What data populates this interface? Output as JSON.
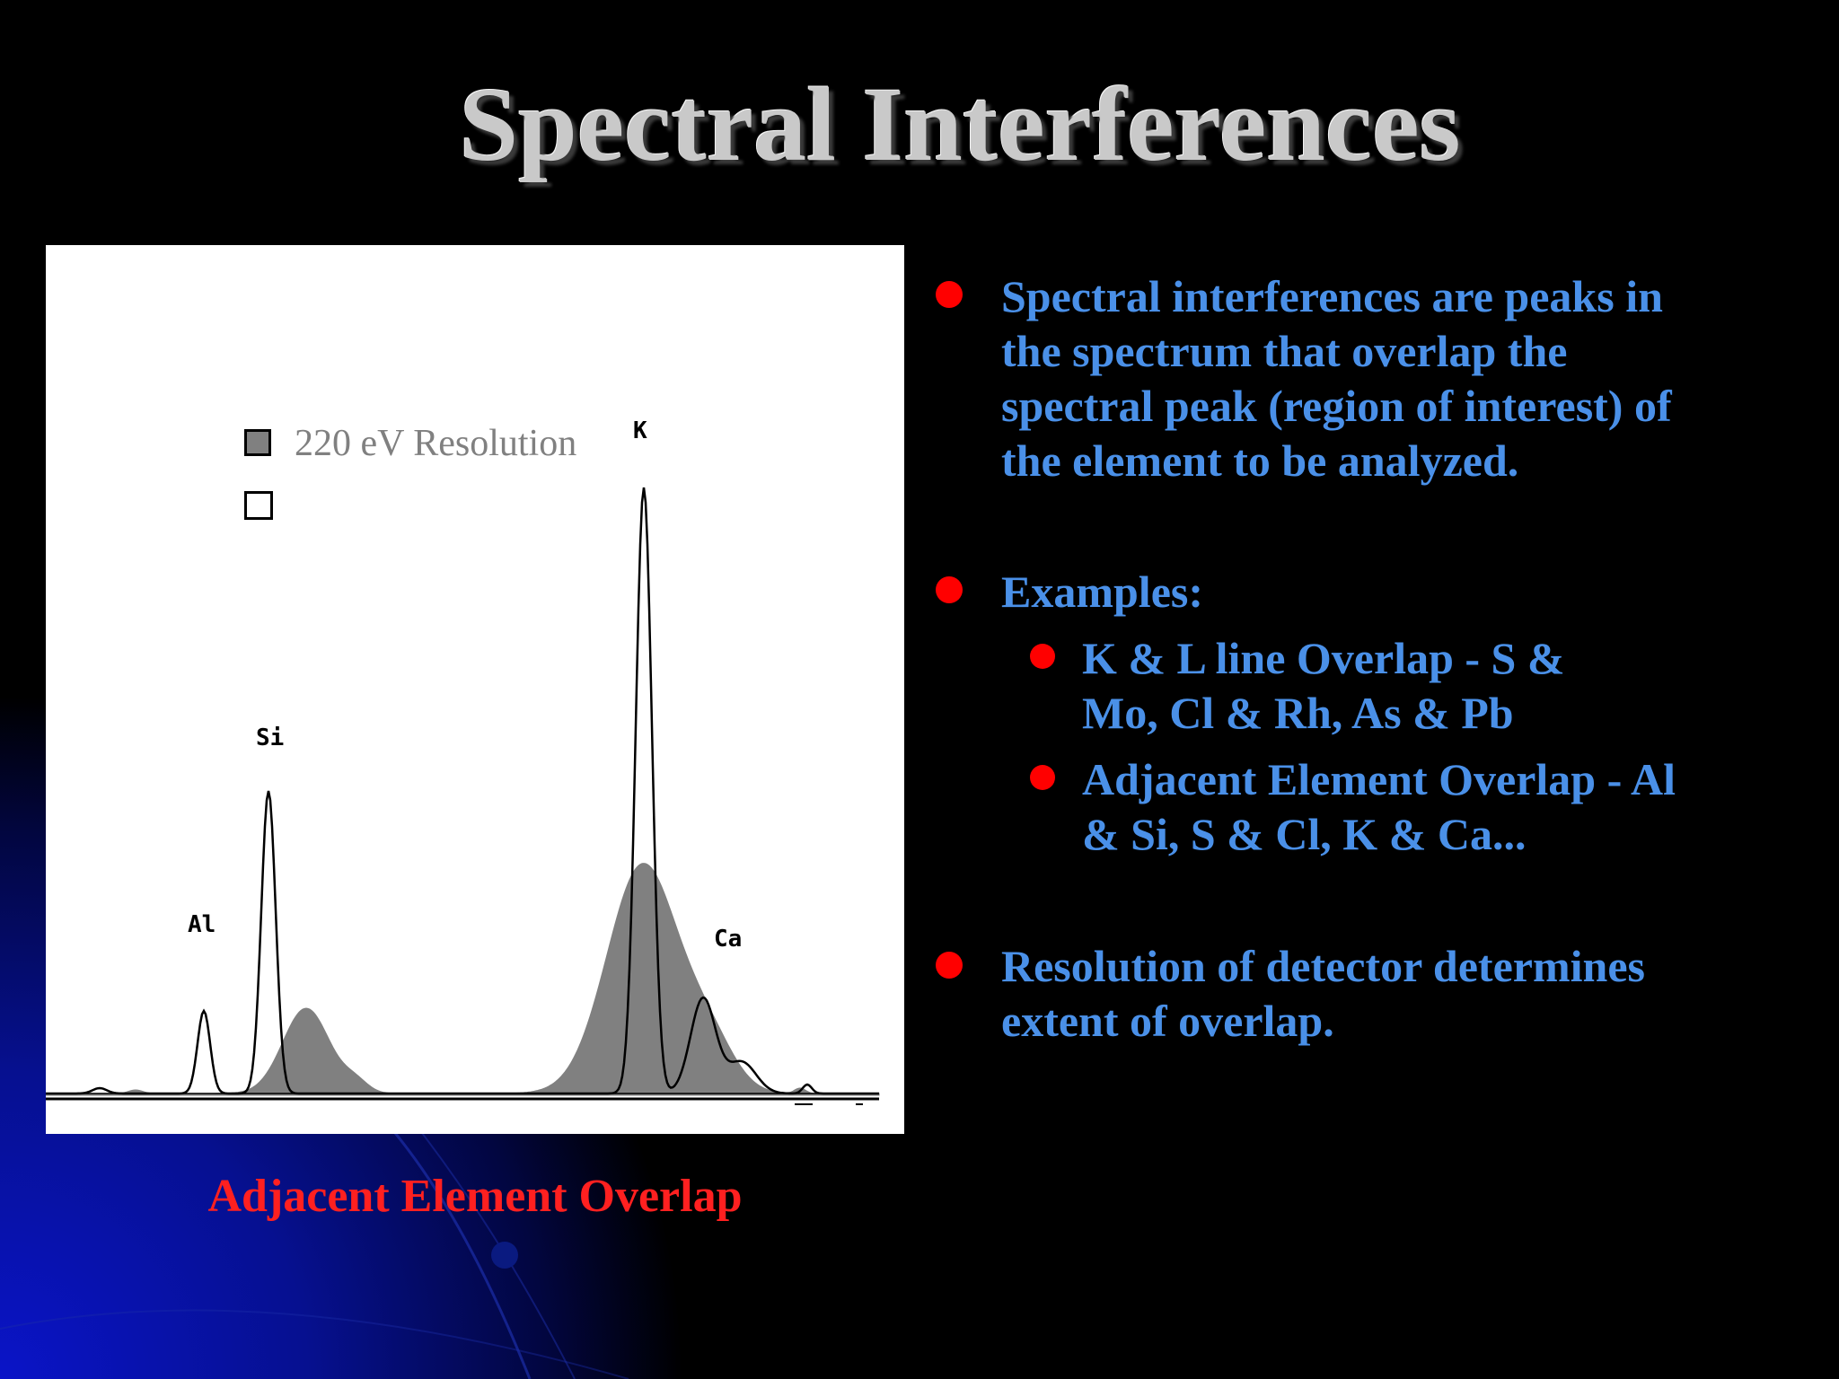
{
  "slide": {
    "title": "Spectral Interferences",
    "bullets": [
      {
        "lines": [
          "Spectral interferences are peaks in",
          "the spectrum that overlap the",
          "spectral peak (region of interest) of",
          "the element to be analyzed."
        ]
      },
      {
        "lines": [
          "Examples:"
        ],
        "sub": [
          {
            "lines": [
              "K & L line Overlap - S &",
              "Mo, Cl & Rh, As & Pb"
            ]
          },
          {
            "lines": [
              "Adjacent Element Overlap - Al",
              "& Si, S & Cl, K & Ca..."
            ]
          }
        ]
      },
      {
        "lines": [
          "Resolution of detector determines",
          "extent of overlap."
        ]
      }
    ]
  },
  "figure": {
    "legend_label": "220 eV Resolution",
    "caption": "Adjacent Element Overlap",
    "colors": {
      "filled_spectrum": "#808080",
      "outline_spectrum": "#000000",
      "caption": "#ff2020",
      "bullet_text": "#4a90e8",
      "bullet_dot": "#ff0000"
    }
  },
  "chart_data": {
    "type": "area",
    "xlabel": "",
    "ylabel": "",
    "peaks": [
      {
        "label": "Al"
      },
      {
        "label": "Si"
      },
      {
        "label": "K"
      },
      {
        "label": "Ca"
      }
    ],
    "series": [
      {
        "name": "220 eV Resolution",
        "style": "filled"
      },
      {
        "name": "",
        "style": "outline"
      }
    ]
  }
}
